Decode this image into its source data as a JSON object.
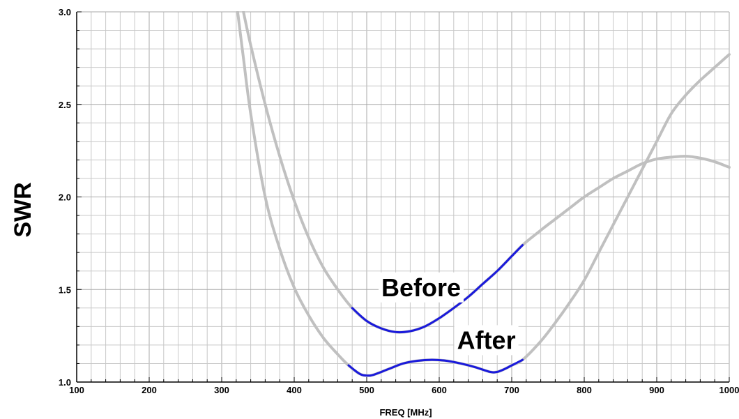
{
  "chart_data": {
    "type": "line",
    "title": "",
    "xlabel": "FREQ [MHz]",
    "ylabel": "SWR",
    "xlim": [
      100,
      1000
    ],
    "ylim": [
      1.0,
      3.0
    ],
    "x_ticks": [
      100,
      200,
      300,
      400,
      500,
      600,
      700,
      800,
      900,
      1000
    ],
    "y_ticks": [
      1.0,
      1.5,
      2.0,
      2.5,
      3.0
    ],
    "x_tick_labels": [
      "100",
      "200",
      "300",
      "400",
      "500",
      "600",
      "700",
      "800",
      "900",
      "1000"
    ],
    "y_tick_labels": [
      "1.0",
      "1.5",
      "2.0",
      "2.5",
      "3.0"
    ],
    "grid": true,
    "highlight_band": [
      470,
      715
    ],
    "colors": {
      "curve": "#c0c0c0",
      "highlight": "#1a1adc",
      "grid": "#c8c8c8"
    },
    "series": [
      {
        "name": "Before",
        "x": [
          330,
          340,
          360,
          380,
          400,
          420,
          440,
          460,
          480,
          500,
          520,
          540,
          560,
          580,
          600,
          620,
          640,
          660,
          680,
          700,
          715,
          740,
          760,
          780,
          800,
          820,
          840,
          860,
          880,
          900,
          920,
          940,
          960,
          980,
          1000
        ],
        "y": [
          3.0,
          2.82,
          2.5,
          2.22,
          1.98,
          1.78,
          1.62,
          1.5,
          1.4,
          1.33,
          1.29,
          1.27,
          1.275,
          1.3,
          1.345,
          1.4,
          1.46,
          1.53,
          1.6,
          1.68,
          1.74,
          1.82,
          1.88,
          1.94,
          2.0,
          2.05,
          2.1,
          2.14,
          2.18,
          2.205,
          2.215,
          2.22,
          2.21,
          2.19,
          2.16
        ]
      },
      {
        "name": "After",
        "x": [
          322,
          330,
          340,
          360,
          380,
          400,
          420,
          440,
          460,
          475,
          490,
          500,
          510,
          530,
          550,
          570,
          590,
          610,
          630,
          650,
          670,
          680,
          690,
          700,
          715,
          740,
          760,
          780,
          800,
          820,
          840,
          860,
          880,
          900,
          920,
          940,
          960,
          980,
          1000
        ],
        "y": [
          3.0,
          2.75,
          2.45,
          2.0,
          1.72,
          1.51,
          1.36,
          1.24,
          1.15,
          1.09,
          1.045,
          1.035,
          1.04,
          1.07,
          1.1,
          1.115,
          1.12,
          1.115,
          1.1,
          1.08,
          1.055,
          1.055,
          1.07,
          1.09,
          1.12,
          1.22,
          1.32,
          1.43,
          1.55,
          1.7,
          1.85,
          2.0,
          2.15,
          2.3,
          2.45,
          2.55,
          2.63,
          2.7,
          2.77
        ]
      }
    ],
    "annotations": [
      {
        "text": "Before",
        "x": 575,
        "y": 1.5
      },
      {
        "text": "After",
        "x": 665,
        "y": 1.215
      }
    ]
  }
}
